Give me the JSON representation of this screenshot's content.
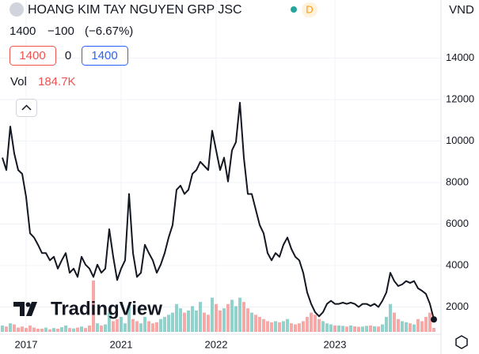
{
  "chart_data": {
    "type": "line",
    "symbol": "HOANG KIM TAY NGUYEN GRP JSC",
    "interval": "D",
    "currency": "VND",
    "last": 1400,
    "change": {
      "value": -100,
      "label": "−100"
    },
    "change_pct": {
      "value": -6.67,
      "label": "(−6.67%)"
    },
    "bid": 1400,
    "spread": 0,
    "ask": 1400,
    "volume_title": "Vol",
    "volume_last": {
      "value": 184700,
      "label": "184.7K"
    },
    "logo": "TradingView",
    "categories": [
      null,
      null,
      null,
      null,
      null,
      null,
      "2017",
      null,
      null,
      null,
      null,
      null,
      null,
      null,
      null,
      null,
      null,
      null,
      null,
      null,
      null,
      null,
      null,
      null,
      null,
      null,
      null,
      null,
      null,
      null,
      "2021",
      null,
      null,
      null,
      null,
      null,
      null,
      null,
      null,
      null,
      null,
      null,
      null,
      null,
      null,
      null,
      null,
      null,
      null,
      null,
      null,
      null,
      null,
      null,
      "2022",
      null,
      null,
      null,
      null,
      null,
      null,
      null,
      null,
      null,
      null,
      null,
      null,
      null,
      null,
      null,
      null,
      null,
      null,
      null,
      null,
      null,
      null,
      null,
      null,
      null,
      null,
      null,
      null,
      null,
      "2023",
      null,
      null,
      null,
      null,
      null,
      null,
      null,
      null,
      null,
      null,
      null,
      null,
      null,
      null,
      null,
      null,
      null,
      null,
      null,
      null,
      null,
      null,
      null,
      null,
      null
    ],
    "series": [
      {
        "name": "Price",
        "color": "#131722",
        "values": [
          9200,
          8600,
          10700,
          9400,
          8600,
          8420,
          7300,
          5550,
          5350,
          5000,
          4600,
          4600,
          4250,
          4420,
          3850,
          4250,
          4600,
          3650,
          3850,
          3450,
          4420,
          4040,
          3850,
          3450,
          4040,
          3650,
          3850,
          5750,
          4420,
          3300,
          3850,
          4250,
          7450,
          4600,
          3450,
          3650,
          5000,
          4600,
          4250,
          3650,
          4040,
          4600,
          5350,
          5950,
          7650,
          7850,
          7450,
          7650,
          8420,
          8600,
          9000,
          8800,
          8600,
          10500,
          9550,
          8600,
          9200,
          8050,
          9550,
          9950,
          11850,
          9200,
          7450,
          7450,
          6700,
          5950,
          5550,
          4600,
          4250,
          4600,
          4420,
          5000,
          5350,
          4800,
          4420,
          4250,
          3650,
          2700,
          2150,
          1750,
          1550,
          1750,
          2150,
          2300,
          2150,
          2150,
          2210,
          2150,
          2210,
          2150,
          2000,
          2150,
          2150,
          2050,
          2150,
          2000,
          2300,
          2700,
          3650,
          3250,
          3010,
          3090,
          3250,
          3160,
          3250,
          2900,
          2780,
          2630,
          2150,
          1400
        ]
      },
      {
        "name": "Volume",
        "values": [
          300000,
          250000,
          400000,
          350000,
          200000,
          250000,
          180000,
          300000,
          200000,
          150000,
          150000,
          200000,
          120000,
          180000,
          150000,
          220000,
          300000,
          180000,
          160000,
          200000,
          250000,
          180000,
          300000,
          2400000,
          400000,
          300000,
          350000,
          900000,
          500000,
          600000,
          700000,
          400000,
          1200000,
          600000,
          500000,
          400000,
          700000,
          500000,
          400000,
          450000,
          600000,
          700000,
          800000,
          900000,
          1300000,
          1100000,
          900000,
          1000000,
          1200000,
          1000000,
          1400000,
          900000,
          800000,
          1600000,
          1300000,
          1000000,
          1100000,
          1300000,
          1500000,
          1200000,
          1600000,
          1400000,
          1100000,
          900000,
          800000,
          700000,
          600000,
          500000,
          450000,
          500000,
          450000,
          500000,
          600000,
          400000,
          350000,
          400000,
          500000,
          700000,
          900000,
          800000,
          600000,
          500000,
          400000,
          350000,
          300000,
          300000,
          280000,
          250000,
          300000,
          260000,
          240000,
          250000,
          280000,
          300000,
          260000,
          250000,
          350000,
          700000,
          1300000,
          900000,
          600000,
          500000,
          450000,
          400000,
          350000,
          600000,
          500000,
          700000,
          900000,
          184700
        ]
      }
    ],
    "up_color": "#26a69a",
    "down_color": "#ef5350",
    "ylim": [
      800,
      16800
    ],
    "yticks": [
      2000,
      4000,
      6000,
      8000,
      10000,
      12000,
      14000
    ]
  }
}
